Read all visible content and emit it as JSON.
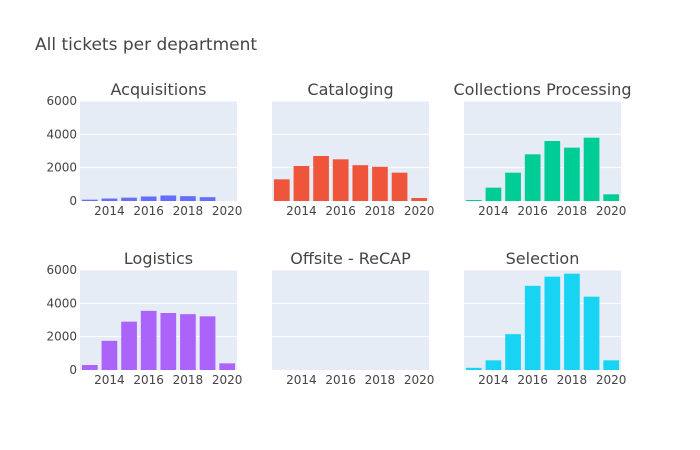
{
  "figure": {
    "title": "All tickets per department"
  },
  "colors": {
    "plot_background": "#E5ECF6",
    "grid": "#ffffff",
    "text": "#444444"
  },
  "chart_data": [
    {
      "type": "bar",
      "title": "Acquisitions",
      "x": [
        2013,
        2014,
        2015,
        2016,
        2017,
        2018,
        2019,
        2020
      ],
      "values": [
        80,
        150,
        200,
        270,
        330,
        290,
        230,
        0
      ],
      "color": "#636EFA",
      "xticks": [
        "2014",
        "2016",
        "2018",
        "2020"
      ],
      "yticks": [
        "0",
        "2000",
        "4000",
        "6000"
      ],
      "ylim": [
        0,
        6000
      ],
      "xlim": [
        2012.5,
        2020.5
      ]
    },
    {
      "type": "bar",
      "title": "Cataloging",
      "x": [
        2013,
        2014,
        2015,
        2016,
        2017,
        2018,
        2019,
        2020
      ],
      "values": [
        1300,
        2100,
        2700,
        2500,
        2150,
        2050,
        1700,
        180
      ],
      "color": "#EF553B",
      "xticks": [
        "2014",
        "2016",
        "2018",
        "2020"
      ],
      "ylim": [
        0,
        6000
      ],
      "xlim": [
        2012.5,
        2020.5
      ]
    },
    {
      "type": "bar",
      "title": "Collections Processing",
      "x": [
        2013,
        2014,
        2015,
        2016,
        2017,
        2018,
        2019,
        2020
      ],
      "values": [
        60,
        800,
        1700,
        2800,
        3600,
        3200,
        3800,
        400
      ],
      "color": "#00CC96",
      "xticks": [
        "2014",
        "2016",
        "2018",
        "2020"
      ],
      "ylim": [
        0,
        6000
      ],
      "xlim": [
        2012.5,
        2020.5
      ]
    },
    {
      "type": "bar",
      "title": "Logistics",
      "x": [
        2013,
        2014,
        2015,
        2016,
        2017,
        2018,
        2019,
        2020
      ],
      "values": [
        300,
        1750,
        2900,
        3550,
        3420,
        3350,
        3220,
        400
      ],
      "color": "#AB63FA",
      "xticks": [
        "2014",
        "2016",
        "2018",
        "2020"
      ],
      "yticks": [
        "0",
        "2000",
        "4000",
        "6000"
      ],
      "ylim": [
        0,
        6000
      ],
      "xlim": [
        2012.5,
        2020.5
      ]
    },
    {
      "type": "bar",
      "title": "Offsite - ReCAP",
      "x": [
        2013,
        2014,
        2015,
        2016,
        2017,
        2018,
        2019,
        2020
      ],
      "values": [
        0,
        0,
        0,
        0,
        0,
        0,
        0,
        0
      ],
      "color": "#FFA15A",
      "xticks": [
        "2014",
        "2016",
        "2018",
        "2020"
      ],
      "ylim": [
        0,
        6000
      ],
      "xlim": [
        2012.5,
        2020.5
      ]
    },
    {
      "type": "bar",
      "title": "Selection",
      "x": [
        2013,
        2014,
        2015,
        2016,
        2017,
        2018,
        2019,
        2020
      ],
      "values": [
        130,
        580,
        2150,
        5050,
        5600,
        5780,
        4400,
        580
      ],
      "color": "#19D3F3",
      "xticks": [
        "2014",
        "2016",
        "2018",
        "2020"
      ],
      "ylim": [
        0,
        6000
      ],
      "xlim": [
        2012.5,
        2020.5
      ]
    }
  ]
}
